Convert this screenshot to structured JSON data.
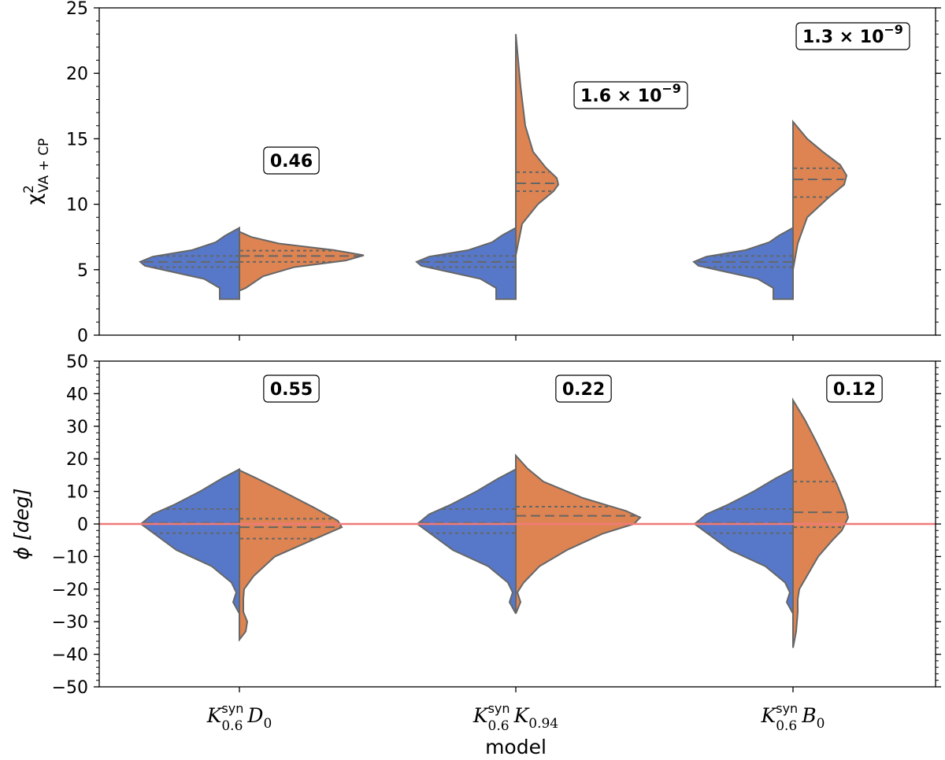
{
  "chart_data": [
    {
      "type": "violin",
      "panel": "top",
      "ylabel_main": "χ",
      "ylabel_sup": "2",
      "ylabel_sub": "VA + CP",
      "ylim": [
        0,
        25
      ],
      "yticks": [
        "0",
        "5",
        "10",
        "15",
        "20",
        "25"
      ],
      "categories": [
        "K syn 0.6 D0",
        "K syn 0.6 K0.94",
        "K syn 0.6 B0"
      ],
      "series": [
        {
          "color": "#5778c9",
          "side": "left",
          "quartiles": [
            [
              5.2,
              5.6,
              6.05
            ],
            [
              5.2,
              5.6,
              6.05
            ],
            [
              5.2,
              5.6,
              6.05
            ]
          ]
        },
        {
          "color": "#dd8452",
          "side": "right",
          "quartiles": [
            [
              5.6,
              6.05,
              6.45
            ],
            [
              11.0,
              11.6,
              12.45
            ],
            [
              10.55,
              11.9,
              12.75
            ]
          ]
        }
      ],
      "annotations": [
        "0.46",
        "1.6 × 10",
        "1.3 × 10"
      ],
      "annotation_exponents": [
        "",
        "−9",
        "−9"
      ]
    },
    {
      "type": "violin",
      "panel": "bottom",
      "ylabel": "ϕ [deg]",
      "ylim": [
        -50,
        50
      ],
      "yticks": [
        "−50",
        "−40",
        "−30",
        "−20",
        "−10",
        "0",
        "10",
        "20",
        "30",
        "40",
        "50"
      ],
      "hline": 0,
      "hline_color": "#f07a7a",
      "series": [
        {
          "color": "#5778c9",
          "side": "left",
          "quartiles": [
            [
              -2.8,
              0.3,
              4.6
            ],
            [
              -2.8,
              0.3,
              4.6
            ],
            [
              -2.8,
              0.3,
              4.6
            ]
          ]
        },
        {
          "color": "#dd8452",
          "side": "right",
          "quartiles": [
            [
              -4.5,
              -1.0,
              1.6
            ],
            [
              0,
              2.5,
              5.3
            ],
            [
              -1.0,
              3.6,
              13.0
            ]
          ]
        }
      ],
      "annotations": [
        "0.55",
        "0.22",
        "0.12"
      ]
    }
  ],
  "xlabel": "model",
  "xtick_labels": [
    {
      "main": "K",
      "sup": "syn",
      "sub": "0.6",
      "second": "D",
      "second_sub": "0"
    },
    {
      "main": "K",
      "sup": "syn",
      "sub": "0.6",
      "second": "K",
      "second_sub": "0.94"
    },
    {
      "main": "K",
      "sup": "syn",
      "sub": "0.6",
      "second": "B",
      "second_sub": "0"
    }
  ]
}
